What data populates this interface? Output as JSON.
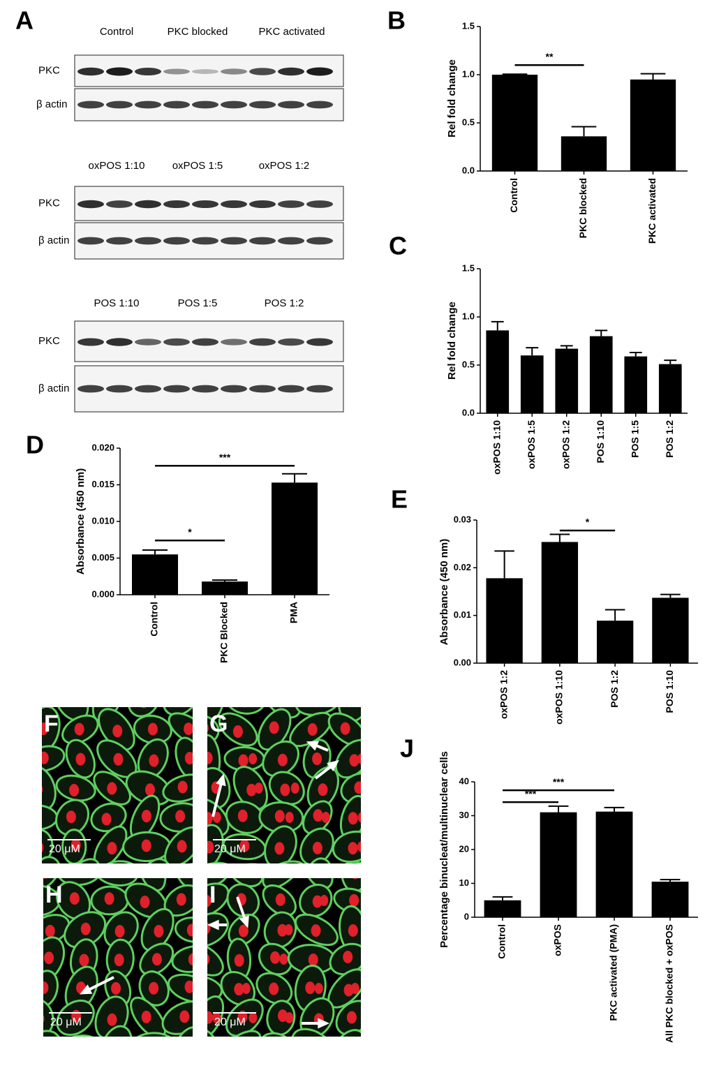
{
  "blots": {
    "panel": "A",
    "sets": [
      {
        "groups": [
          "Control",
          "PKC blocked",
          "PKC activated"
        ],
        "rows": [
          "PKC",
          "β actin"
        ]
      },
      {
        "groups": [
          "oxPOS 1:10",
          "oxPOS 1:5",
          "oxPOS 1:2"
        ],
        "rows": [
          "PKC",
          "β actin"
        ]
      },
      {
        "groups": [
          "POS 1:10",
          "POS 1:5",
          "POS 1:2"
        ],
        "rows": [
          "PKC",
          "β actin"
        ]
      }
    ]
  },
  "micrographs": [
    {
      "panel": "F",
      "scale_bar": "20 μM"
    },
    {
      "panel": "G",
      "scale_bar": "20 μM"
    },
    {
      "panel": "H",
      "scale_bar": "20 μM"
    },
    {
      "panel": "I",
      "scale_bar": "20 μM"
    }
  ],
  "chart_data": [
    {
      "type": "bar",
      "panel": "B",
      "y_label": "Rel fold change",
      "categories": [
        "Control",
        "PKC blocked",
        "PKC activated"
      ],
      "values": [
        1.0,
        0.36,
        0.95
      ],
      "errors": [
        0.005,
        0.1,
        0.06
      ],
      "color": "#000000",
      "ylim": [
        0,
        1.5
      ],
      "yticks": [
        {
          "value": 0,
          "label": "0.0"
        },
        0.5,
        {
          "value": 1,
          "label": "1.0"
        },
        1.5
      ],
      "annotations": [
        {
          "text": "**",
          "y": 1.1,
          "from": "Control",
          "to": "PKC blocked"
        }
      ]
    },
    {
      "type": "bar",
      "panel": "C",
      "y_label": "Rel fold change",
      "categories": [
        "oxPOS 1:10",
        "oxPOS 1:5",
        "oxPOS 1:2",
        "POS 1:10",
        "POS 1:5",
        "POS 1:2"
      ],
      "values": [
        0.86,
        0.6,
        0.67,
        0.8,
        0.59,
        0.51
      ],
      "errors": [
        0.09,
        0.08,
        0.03,
        0.06,
        0.04,
        0.04
      ],
      "color": "#000000",
      "ylim": [
        0,
        1.5
      ],
      "yticks": [
        {
          "value": 0,
          "label": "0.0"
        },
        0.5,
        {
          "value": 1,
          "label": "1.0"
        },
        1.5
      ],
      "annotations": []
    },
    {
      "type": "bar",
      "panel": "D",
      "y_label": "Absorbance (450 nm)",
      "categories": [
        "Control",
        "PKC Blocked",
        "PMA"
      ],
      "values": [
        0.0055,
        0.0018,
        0.0153
      ],
      "errors": [
        0.0006,
        0.0002,
        0.0012
      ],
      "color": "#000000",
      "ylim": [
        0,
        0.02
      ],
      "yticks": [
        {
          "value": 0,
          "label": "0.000"
        },
        {
          "value": 0.005,
          "label": "0.005"
        },
        {
          "value": 0.01,
          "label": "0.010"
        },
        {
          "value": 0.015,
          "label": "0.015"
        },
        {
          "value": 0.02,
          "label": "0.020"
        }
      ],
      "annotations": [
        {
          "text": "*",
          "y": 0.0074,
          "from": "Control",
          "to": "PKC Blocked"
        },
        {
          "text": "***",
          "y": 0.0176,
          "from": "Control",
          "to": "PMA"
        }
      ]
    },
    {
      "type": "bar",
      "panel": "E",
      "y_label": "Absorbance (450 nm)",
      "categories": [
        "oxPOS 1:2",
        "oxPOS 1:10",
        "POS 1:2",
        "POS 1:10"
      ],
      "values": [
        0.0178,
        0.0254,
        0.0089,
        0.0137
      ],
      "errors": [
        0.0057,
        0.0016,
        0.0023,
        0.0007
      ],
      "color": "#000000",
      "ylim": [
        0,
        0.03
      ],
      "yticks": [
        {
          "value": 0,
          "label": "0.00"
        },
        0.01,
        0.02,
        0.03
      ],
      "annotations": [
        {
          "text": "*",
          "y": 0.0278,
          "from": "oxPOS 1:10",
          "to": "POS 1:2"
        }
      ]
    },
    {
      "type": "bar",
      "panel": "J",
      "y_label": "Percentage binucleat/multinuclear cells",
      "categories": [
        "Control",
        "oxPOS",
        "PKC activated (PMA)",
        "All PKC blocked + oxPOS"
      ],
      "values": [
        5,
        31,
        31.2,
        10.5
      ],
      "errors": [
        1,
        1.8,
        1.2,
        0.6
      ],
      "color": "#000000",
      "ylim": [
        0,
        40
      ],
      "yticks": [
        0,
        10,
        20,
        30,
        40
      ],
      "annotations": [
        {
          "text": "***",
          "y": 34,
          "from": "Control",
          "to": "oxPOS"
        },
        {
          "text": "***",
          "y": 37.5,
          "from": "Control",
          "to": "PKC activated (PMA)"
        }
      ]
    }
  ]
}
